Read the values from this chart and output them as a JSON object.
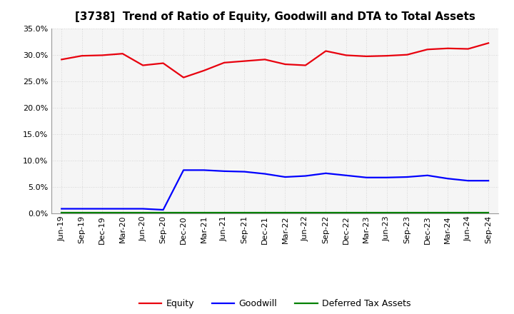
{
  "title": "[3738]  Trend of Ratio of Equity, Goodwill and DTA to Total Assets",
  "x_labels": [
    "Jun-19",
    "Sep-19",
    "Dec-19",
    "Mar-20",
    "Jun-20",
    "Sep-20",
    "Dec-20",
    "Mar-21",
    "Jun-21",
    "Sep-21",
    "Dec-21",
    "Mar-22",
    "Jun-22",
    "Sep-22",
    "Dec-22",
    "Mar-23",
    "Jun-23",
    "Sep-23",
    "Dec-23",
    "Mar-24",
    "Jun-24",
    "Sep-24"
  ],
  "equity": [
    0.291,
    0.298,
    0.299,
    0.302,
    0.28,
    0.284,
    0.257,
    0.27,
    0.285,
    0.288,
    0.291,
    0.282,
    0.28,
    0.307,
    0.299,
    0.297,
    0.298,
    0.3,
    0.31,
    0.312,
    0.311,
    0.322
  ],
  "goodwill": [
    0.009,
    0.009,
    0.009,
    0.009,
    0.009,
    0.007,
    0.082,
    0.082,
    0.08,
    0.079,
    0.075,
    0.069,
    0.071,
    0.076,
    0.072,
    0.068,
    0.068,
    0.069,
    0.072,
    0.066,
    0.062,
    0.062
  ],
  "dta": [
    0.001,
    0.001,
    0.001,
    0.001,
    0.001,
    0.001,
    0.001,
    0.001,
    0.001,
    0.001,
    0.001,
    0.001,
    0.001,
    0.001,
    0.001,
    0.001,
    0.001,
    0.001,
    0.001,
    0.001,
    0.001,
    0.001
  ],
  "equity_color": "#e8000d",
  "goodwill_color": "#0000ff",
  "dta_color": "#008000",
  "ylim": [
    0.0,
    0.35
  ],
  "yticks": [
    0.0,
    0.05,
    0.1,
    0.15,
    0.2,
    0.25,
    0.3,
    0.35
  ],
  "background_color": "#ffffff",
  "plot_bg_color": "#f5f5f5",
  "grid_color": "#cccccc",
  "title_fontsize": 11,
  "tick_fontsize": 8,
  "legend_fontsize": 9
}
